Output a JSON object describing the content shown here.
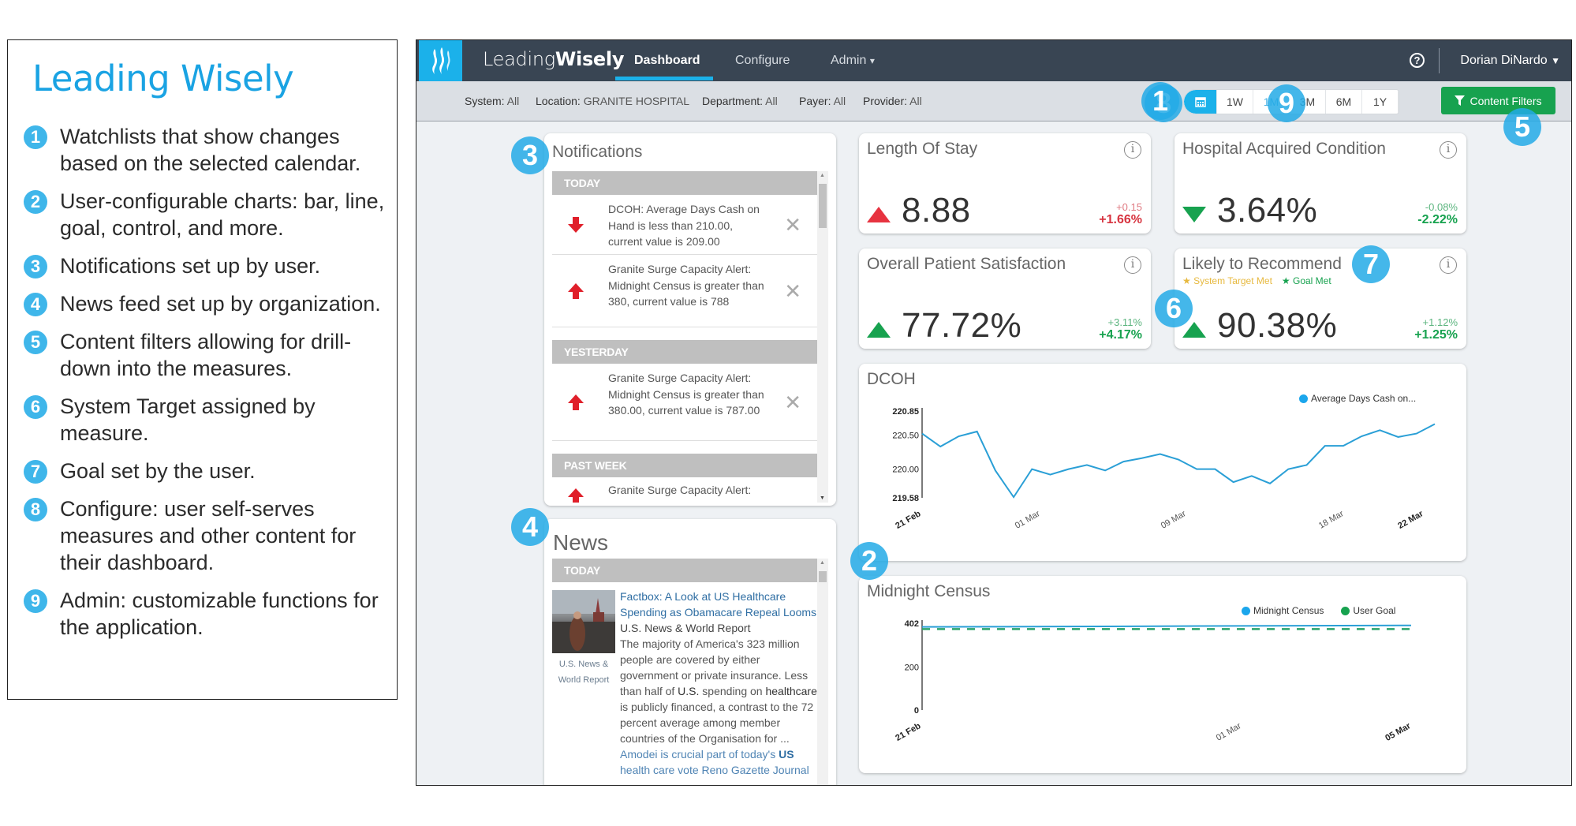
{
  "legend": {
    "title": "Leading Wisely",
    "items": [
      {
        "num": "1",
        "text": "Watchlists that show changes based on the selected calendar."
      },
      {
        "num": "2",
        "text": "User-configurable charts: bar, line, goal, control, and more."
      },
      {
        "num": "3",
        "text": "Notifications set up by user."
      },
      {
        "num": "4",
        "text": "News feed set up by organization."
      },
      {
        "num": "5",
        "text": "Content filters allowing for drill-down into the measures."
      },
      {
        "num": "6",
        "text": "System Target assigned by measure."
      },
      {
        "num": "7",
        "text": "Goal set by the user."
      },
      {
        "num": "8",
        "text": "Configure: user self-serves measures and other content for their dashboard."
      },
      {
        "num": "9",
        "text": "Admin: customizable functions for the application."
      }
    ]
  },
  "app": {
    "brand_light": "Leading",
    "brand_bold": "Wisely",
    "nav": [
      {
        "label": "Dashboard",
        "active": true
      },
      {
        "label": "Configure",
        "active": false
      },
      {
        "label": "Admin",
        "active": false
      }
    ],
    "admin_caret": "⌄",
    "help_icon": "?",
    "user": "Dorian DiNardo",
    "user_caret": "⌄",
    "filters": [
      {
        "key": "System:",
        "value": "All"
      },
      {
        "key": "Location:",
        "value": "GRANITE HOSPITAL"
      },
      {
        "key": "Department:",
        "value": "All"
      },
      {
        "key": "Payer:",
        "value": "All"
      },
      {
        "key": "Provider:",
        "value": "All"
      }
    ],
    "periods": [
      "1W",
      "1M",
      "3M",
      "6M",
      "1Y"
    ],
    "active_period": "1M",
    "content_filters_label": "Content Filters",
    "colors": {
      "accent": "#1bb1ea",
      "nav_bg": "#394553",
      "green": "#17a24f",
      "red": "#e73340",
      "target_gold": "#e7b93f"
    }
  },
  "callouts": [
    "1",
    "2",
    "3",
    "4",
    "5",
    "6",
    "7",
    "8",
    "9"
  ],
  "notifications": {
    "title": "Notifications",
    "sections": [
      {
        "label": "TODAY",
        "items": [
          {
            "direction": "down",
            "text": "DCOH: Average Days Cash on Hand is less than 210.00, current value is 209.00"
          },
          {
            "direction": "up",
            "text": "Granite Surge Capacity Alert: Midnight Census is greater than 380, current value is 788"
          }
        ]
      },
      {
        "label": "YESTERDAY",
        "items": [
          {
            "direction": "up",
            "text": "Granite Surge Capacity Alert: Midnight Census is greater than 380.00, current value is 787.00"
          }
        ]
      },
      {
        "label": "PAST WEEK",
        "items": [
          {
            "direction": "up",
            "text": "Granite Surge Capacity Alert:"
          }
        ]
      }
    ],
    "close_glyph": "✕"
  },
  "news": {
    "title": "News",
    "section": "TODAY",
    "article": {
      "headline": "Factbox: A Look at US Healthcare Spending as Obamacare Repeal Looms",
      "source": "U.S. News & World Report",
      "thumb_caption_1": "U.S. News &",
      "thumb_caption_2": "World Report",
      "summary_1": "The majority of America's 323 million people are covered by either government or private insurance. Less than half of ",
      "summary_bold_1": "U.S.",
      "summary_2": " spending on ",
      "summary_bold_2": "healthcare",
      "summary_3": " is publicly financed, a contrast to the 72 percent average among member countries of the Organisation for ...",
      "next_link_1": "Amodei is crucial part of today's ",
      "next_link_bold": "US",
      "next_link_2": " health care vote Reno Gazette Journal"
    }
  },
  "kpis": [
    {
      "title": "Length Of Stay",
      "value": "8.88",
      "trend": "up-red",
      "delta_abs": "+0.15",
      "delta_pct": "+1.66%",
      "color": "#d7333f"
    },
    {
      "title": "Hospital Acquired Condition",
      "value": "3.64%",
      "trend": "down-green",
      "delta_abs": "-0.08%",
      "delta_pct": "-2.22%",
      "color": "#17a24f"
    },
    {
      "title": "Overall Patient Satisfaction",
      "value": "77.72%",
      "trend": "up-green",
      "delta_abs": "+3.11%",
      "delta_pct": "+4.17%",
      "color": "#17a24f"
    },
    {
      "title": "Likely to Recommend",
      "value": "90.38%",
      "trend": "up-green",
      "delta_abs": "+1.12%",
      "delta_pct": "+1.25%",
      "color": "#17a24f",
      "badges": [
        {
          "label": "★ System Target Met",
          "color": "#e7b93f"
        },
        {
          "label": "★ Goal Met",
          "color": "#17a24f"
        }
      ]
    }
  ],
  "info_glyph": "i",
  "chart_data": [
    {
      "type": "line",
      "title": "DCOH",
      "xlabel": "",
      "ylabel": "",
      "ylim": [
        219.58,
        220.85
      ],
      "yticks": [
        "220.85",
        "220.50",
        "220.00",
        "219.58"
      ],
      "xticks": [
        "21 Feb",
        "01 Mar",
        "09 Mar",
        "18 Mar",
        "22 Mar"
      ],
      "legend": [
        "Average Days Cash on..."
      ],
      "series": [
        {
          "name": "Average Days Cash on Hand",
          "color": "#2a9fd6",
          "values": [
            220.52,
            220.33,
            220.48,
            220.55,
            219.98,
            219.59,
            220.0,
            219.92,
            220.0,
            220.06,
            219.98,
            220.11,
            220.16,
            220.22,
            220.14,
            220.0,
            220.0,
            219.81,
            219.9,
            219.79,
            220.0,
            220.06,
            220.34,
            220.34,
            220.48,
            220.57,
            220.47,
            220.52,
            220.66
          ]
        }
      ],
      "grid": false
    },
    {
      "type": "line",
      "title": "Midnight Census",
      "xlabel": "",
      "ylabel": "",
      "ylim": [
        0,
        402
      ],
      "yticks": [
        "402",
        "200",
        "0"
      ],
      "xticks": [
        "21 Feb",
        "01 Mar",
        "05 Mar"
      ],
      "legend": [
        "Midnight Census",
        "User Goal"
      ],
      "series": [
        {
          "name": "Midnight Census",
          "color": "#2a9fd6",
          "values": [
            385,
            386,
            387,
            388,
            389,
            390,
            391,
            392
          ]
        },
        {
          "name": "User Goal",
          "color": "#2aa36b",
          "style": "dashed",
          "values": [
            375,
            375,
            375,
            375,
            375,
            375,
            375,
            375
          ]
        }
      ],
      "grid": false
    }
  ]
}
